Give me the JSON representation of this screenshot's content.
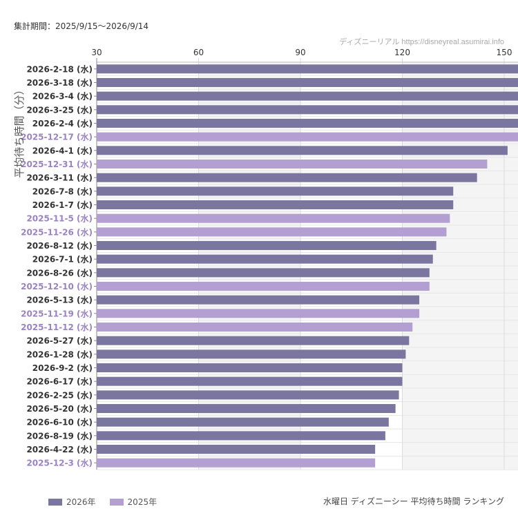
{
  "header": {
    "period": "集計期間：2025/9/15〜2026/9/14",
    "credit": "ディズニーリアル https://disneyreal.asumirai.info"
  },
  "footer": {
    "caption": "水曜日 ディズニーシー 平均待ち時間 ランキング"
  },
  "colors": {
    "series_2026": "#7b76a0",
    "series_2025": "#b39fd1",
    "label_2026": "#333333",
    "label_2025": "#9a83c2"
  },
  "chart_data": {
    "type": "bar",
    "orientation": "horizontal",
    "ylabel": "平均待ち時間（分）",
    "xlim": [
      30,
      150
    ],
    "xticks": [
      30,
      60,
      90,
      120,
      150
    ],
    "grid": true,
    "legend_position": "bottom-left",
    "series": [
      {
        "name": "2026年",
        "color": "#7b76a0"
      },
      {
        "name": "2025年",
        "color": "#b39fd1"
      }
    ],
    "bars": [
      {
        "label": "2026-2-18 (水)",
        "series": "2026年",
        "value": 155
      },
      {
        "label": "2026-3-18 (水)",
        "series": "2026年",
        "value": 155
      },
      {
        "label": "2026-3-4 (水)",
        "series": "2026年",
        "value": 155
      },
      {
        "label": "2026-3-25 (水)",
        "series": "2026年",
        "value": 155
      },
      {
        "label": "2026-2-4 (水)",
        "series": "2026年",
        "value": 155
      },
      {
        "label": "2025-12-17 (水)",
        "series": "2025年",
        "value": 155
      },
      {
        "label": "2026-4-1 (水)",
        "series": "2026年",
        "value": 151
      },
      {
        "label": "2025-12-31 (水)",
        "series": "2025年",
        "value": 145
      },
      {
        "label": "2026-3-11 (水)",
        "series": "2026年",
        "value": 142
      },
      {
        "label": "2026-7-8 (水)",
        "series": "2026年",
        "value": 135
      },
      {
        "label": "2026-1-7 (水)",
        "series": "2026年",
        "value": 135
      },
      {
        "label": "2025-11-5 (水)",
        "series": "2025年",
        "value": 134
      },
      {
        "label": "2025-11-26 (水)",
        "series": "2025年",
        "value": 133
      },
      {
        "label": "2026-8-12 (水)",
        "series": "2026年",
        "value": 130
      },
      {
        "label": "2026-7-1 (水)",
        "series": "2026年",
        "value": 129
      },
      {
        "label": "2026-8-26 (水)",
        "series": "2026年",
        "value": 128
      },
      {
        "label": "2025-12-10 (水)",
        "series": "2025年",
        "value": 128
      },
      {
        "label": "2026-5-13 (水)",
        "series": "2026年",
        "value": 125
      },
      {
        "label": "2025-11-19 (水)",
        "series": "2025年",
        "value": 125
      },
      {
        "label": "2025-11-12 (水)",
        "series": "2025年",
        "value": 123
      },
      {
        "label": "2026-5-27 (水)",
        "series": "2026年",
        "value": 122
      },
      {
        "label": "2026-1-28 (水)",
        "series": "2026年",
        "value": 121
      },
      {
        "label": "2026-9-2 (水)",
        "series": "2026年",
        "value": 120
      },
      {
        "label": "2026-6-17 (水)",
        "series": "2026年",
        "value": 120
      },
      {
        "label": "2026-2-25 (水)",
        "series": "2026年",
        "value": 119
      },
      {
        "label": "2026-5-20 (水)",
        "series": "2026年",
        "value": 118
      },
      {
        "label": "2026-6-10 (水)",
        "series": "2026年",
        "value": 116
      },
      {
        "label": "2026-8-19 (水)",
        "series": "2026年",
        "value": 115
      },
      {
        "label": "2026-4-22 (水)",
        "series": "2026年",
        "value": 112
      },
      {
        "label": "2025-12-3 (水)",
        "series": "2025年",
        "value": 112
      }
    ]
  }
}
